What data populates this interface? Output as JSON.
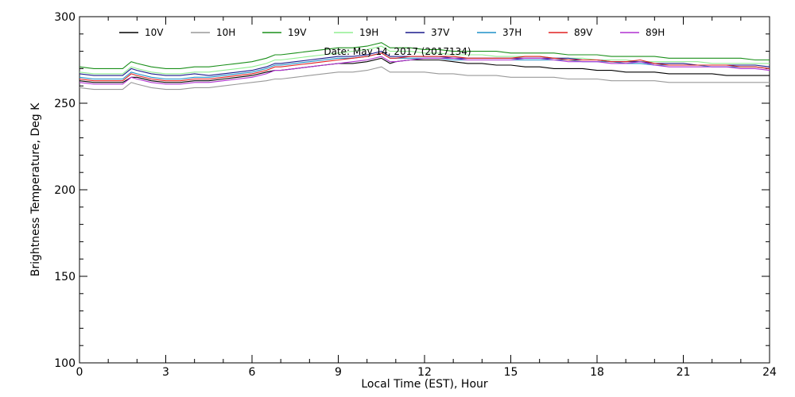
{
  "chart_data": {
    "type": "line",
    "title": "",
    "annotation": "Date: May 14, 2017 (2017134)",
    "xlabel": "Local Time (EST), Hour",
    "ylabel": "Brightness Temperature, Deg K",
    "xlim": [
      0,
      24
    ],
    "ylim": [
      100,
      300
    ],
    "x_ticks": [
      0,
      3,
      6,
      9,
      12,
      15,
      18,
      21,
      24
    ],
    "y_ticks": [
      100,
      150,
      200,
      250,
      300
    ],
    "grid": false,
    "legend_position": "top",
    "x": [
      0,
      0.5,
      1,
      1.5,
      1.8,
      2,
      2.5,
      3,
      3.5,
      4,
      4.5,
      5,
      5.5,
      6,
      6.5,
      6.8,
      7,
      7.5,
      8,
      8.5,
      9,
      9.5,
      10,
      10.5,
      10.8,
      11,
      11.5,
      12,
      12.5,
      13,
      13.5,
      14,
      14.5,
      15,
      15.5,
      16,
      16.5,
      17,
      17.5,
      18,
      18.5,
      19,
      19.5,
      20,
      20.5,
      21,
      21.5,
      22,
      22.5,
      23,
      23.5,
      24
    ],
    "series": [
      {
        "name": "10V",
        "color": "#000000",
        "values": [
          263,
          262,
          262,
          262,
          265,
          265,
          263,
          262,
          262,
          263,
          263,
          264,
          265,
          266,
          268,
          269,
          269,
          270,
          271,
          272,
          273,
          273,
          274,
          276,
          273,
          274,
          275,
          275,
          275,
          274,
          273,
          273,
          272,
          272,
          271,
          271,
          270,
          270,
          270,
          269,
          269,
          268,
          268,
          268,
          267,
          267,
          267,
          267,
          266,
          266,
          266,
          266
        ]
      },
      {
        "name": "10H",
        "color": "#999999",
        "values": [
          259,
          258,
          258,
          258,
          262,
          261,
          259,
          258,
          258,
          259,
          259,
          260,
          261,
          262,
          263,
          264,
          264,
          265,
          266,
          267,
          268,
          268,
          269,
          271,
          268,
          268,
          268,
          268,
          267,
          267,
          266,
          266,
          266,
          265,
          265,
          265,
          265,
          264,
          264,
          264,
          263,
          263,
          263,
          263,
          262,
          262,
          262,
          262,
          262,
          262,
          262,
          262
        ]
      },
      {
        "name": "19V",
        "color": "#1a8f1a",
        "values": [
          271,
          270,
          270,
          270,
          274,
          273,
          271,
          270,
          270,
          271,
          271,
          272,
          273,
          274,
          276,
          278,
          278,
          279,
          280,
          281,
          282,
          282,
          283,
          285,
          282,
          282,
          282,
          281,
          281,
          280,
          280,
          280,
          280,
          279,
          279,
          279,
          279,
          278,
          278,
          278,
          277,
          277,
          277,
          277,
          276,
          276,
          276,
          276,
          276,
          276,
          275,
          275
        ]
      },
      {
        "name": "19H",
        "color": "#90ee90",
        "values": [
          268,
          267,
          267,
          267,
          271,
          270,
          268,
          267,
          267,
          268,
          268,
          269,
          270,
          271,
          273,
          275,
          275,
          276,
          277,
          278,
          279,
          280,
          281,
          283,
          280,
          280,
          280,
          279,
          279,
          278,
          278,
          278,
          277,
          277,
          277,
          277,
          276,
          276,
          276,
          275,
          275,
          275,
          274,
          274,
          274,
          274,
          274,
          273,
          273,
          273,
          273,
          273
        ]
      },
      {
        "name": "37V",
        "color": "#1a1a8c",
        "values": [
          267,
          266,
          266,
          266,
          270,
          269,
          267,
          266,
          266,
          267,
          266,
          267,
          268,
          269,
          271,
          273,
          273,
          274,
          275,
          276,
          277,
          277,
          278,
          280,
          277,
          277,
          277,
          277,
          277,
          276,
          276,
          276,
          276,
          276,
          276,
          276,
          276,
          276,
          275,
          275,
          274,
          274,
          274,
          273,
          273,
          273,
          272,
          272,
          272,
          272,
          272,
          271
        ]
      },
      {
        "name": "37H",
        "color": "#1e90c8",
        "values": [
          265,
          264,
          264,
          264,
          268,
          267,
          265,
          264,
          264,
          265,
          265,
          266,
          267,
          268,
          270,
          272,
          272,
          273,
          274,
          275,
          276,
          276,
          277,
          279,
          276,
          276,
          276,
          276,
          276,
          275,
          275,
          275,
          275,
          275,
          275,
          275,
          275,
          275,
          274,
          274,
          274,
          273,
          273,
          272,
          272,
          272,
          272,
          271,
          271,
          271,
          271,
          270
        ]
      },
      {
        "name": "89V",
        "color": "#e02020",
        "values": [
          264,
          263,
          263,
          263,
          267,
          266,
          264,
          263,
          263,
          264,
          264,
          265,
          266,
          267,
          269,
          271,
          271,
          272,
          273,
          274,
          275,
          276,
          277,
          279,
          276,
          276,
          277,
          277,
          277,
          277,
          276,
          276,
          276,
          276,
          277,
          277,
          276,
          275,
          275,
          275,
          274,
          274,
          275,
          273,
          272,
          272,
          272,
          272,
          272,
          271,
          271,
          270
        ]
      },
      {
        "name": "89H",
        "color": "#b030d0",
        "values": [
          262,
          261,
          261,
          261,
          265,
          264,
          262,
          261,
          261,
          262,
          262,
          263,
          264,
          265,
          267,
          269,
          269,
          270,
          271,
          272,
          273,
          274,
          275,
          277,
          274,
          274,
          275,
          276,
          276,
          276,
          275,
          275,
          275,
          275,
          276,
          276,
          275,
          274,
          274,
          274,
          273,
          273,
          274,
          272,
          271,
          271,
          271,
          271,
          271,
          270,
          270,
          269
        ]
      }
    ]
  }
}
